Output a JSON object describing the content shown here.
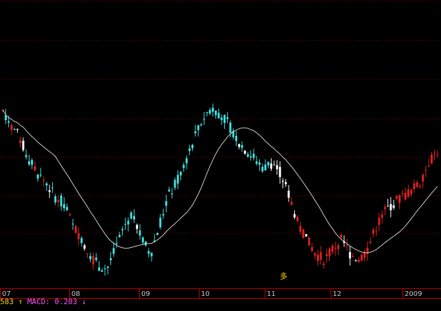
{
  "chart_data": {
    "type": "candlestick",
    "x_tick_labels": [
      "07",
      "08",
      "09",
      "10",
      "11",
      "12",
      "2009"
    ],
    "annotation": "多",
    "series": {
      "moving_average": "white line",
      "candles_rising": "red",
      "candles_falling": "cyan",
      "candles_highlight": "white"
    },
    "price_points": [
      [
        0,
        200
      ],
      [
        2,
        195
      ],
      [
        4,
        190
      ],
      [
        6,
        183
      ],
      [
        8,
        178
      ],
      [
        10,
        175
      ],
      [
        12,
        170
      ],
      [
        14,
        168
      ],
      [
        16,
        160
      ],
      [
        18,
        156
      ],
      [
        20,
        150
      ],
      [
        22,
        146
      ],
      [
        24,
        145
      ],
      [
        26,
        152
      ],
      [
        28,
        160
      ],
      [
        30,
        165
      ],
      [
        32,
        155
      ],
      [
        34,
        150
      ],
      [
        36,
        160
      ],
      [
        38,
        170
      ],
      [
        40,
        175
      ],
      [
        42,
        182
      ],
      [
        44,
        190
      ],
      [
        46,
        197
      ],
      [
        48,
        201
      ],
      [
        50,
        199
      ],
      [
        52,
        195
      ],
      [
        54,
        190
      ],
      [
        56,
        186
      ],
      [
        58,
        183
      ],
      [
        60,
        180
      ],
      [
        62,
        182
      ],
      [
        64,
        178
      ],
      [
        66,
        170
      ],
      [
        68,
        160
      ],
      [
        70,
        155
      ],
      [
        72,
        150
      ],
      [
        74,
        148
      ],
      [
        76,
        152
      ],
      [
        78,
        155
      ],
      [
        80,
        150
      ],
      [
        82,
        148
      ],
      [
        84,
        152
      ],
      [
        86,
        160
      ],
      [
        88,
        165
      ],
      [
        90,
        168
      ],
      [
        92,
        170
      ],
      [
        94,
        172
      ],
      [
        96,
        175
      ],
      [
        98,
        182
      ],
      [
        100,
        186
      ]
    ],
    "colors": {
      "up": "#e02020",
      "down": "#40e0e0",
      "white": "#ffffff",
      "ma": "#cfcfcf",
      "grid": "#a00000",
      "axis": "#c00000"
    }
  },
  "status_bar": {
    "prefix": "583",
    "arrow_up": "↑",
    "macd_label": "MACD:",
    "macd_value": "0.203",
    "arrow_down": "↓",
    "colors": {
      "prefix": "#ffd800",
      "macd": "#ff50ff"
    }
  }
}
